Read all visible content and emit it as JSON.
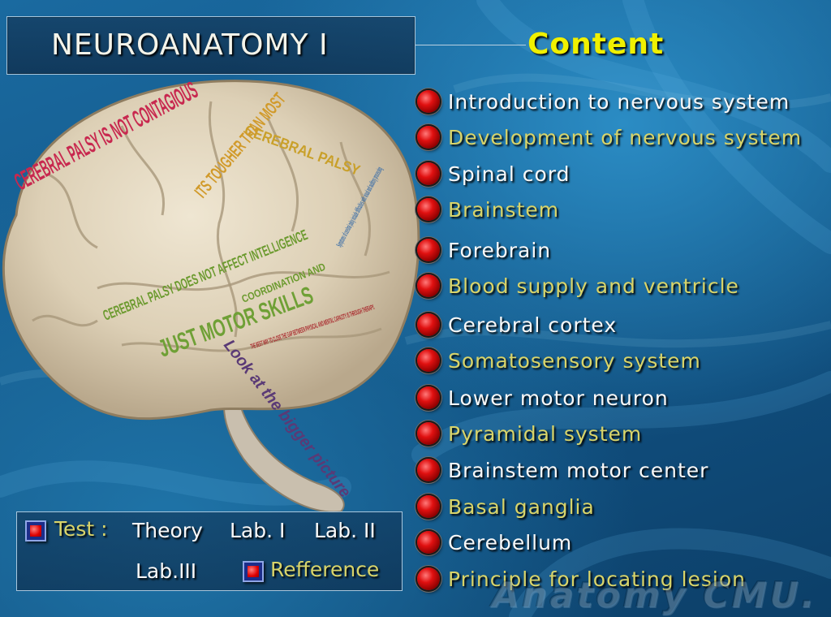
{
  "header": {
    "title": "NEUROANATOMY I",
    "content_heading": "Content"
  },
  "menu": {
    "items": [
      {
        "label": "Introduction to nervous system"
      },
      {
        "label": "Development of nervous system"
      },
      {
        "label": "Spinal cord"
      },
      {
        "label": "Brainstem"
      },
      {
        "label": "Forebrain"
      },
      {
        "label": "Blood supply and ventricle"
      },
      {
        "label": "Cerebral cortex"
      },
      {
        "label": "Somatosensory system"
      },
      {
        "label": "Lower motor neuron"
      },
      {
        "label": "Pyramidal system"
      },
      {
        "label": "Brainstem motor center"
      },
      {
        "label": "Basal ganglia"
      },
      {
        "label": "Cerebellum"
      },
      {
        "label": "Principle for locating lesion"
      }
    ]
  },
  "test_panel": {
    "test_label": "Test :",
    "theory": "Theory",
    "lab1": "Lab. I",
    "lab2": "Lab. II",
    "lab3": "Lab.III",
    "reference": "Refference"
  },
  "brain_image": {
    "texts": [
      "CEREBRAL PALSY IS NOT CONTAGIOUS",
      "CEREBRAL PALSY DOES NOT AFFECT INTELLIGENCE",
      "JUST MOTOR SKILLS",
      "COORDINATION AND",
      "THE BEST WAY TO CLOSE THE GAP BETWEEN PHYSICAL AND MENTAL CAPACITY IS THROUGH THERAPY.",
      "Look at the bigger picture",
      "Symptoms of cerebral palsy include difficulties with visual and auditory processing",
      "CEREBRAL PALSY",
      "ITS TOUGHER THAN MOST"
    ]
  },
  "watermark": "Anatomy CMU.",
  "colors": {
    "menu_white": "#f8f8f8",
    "menu_olive": "#d8d46a",
    "heading_yellow": "#f0f000",
    "bullet_red": "#e01010"
  }
}
